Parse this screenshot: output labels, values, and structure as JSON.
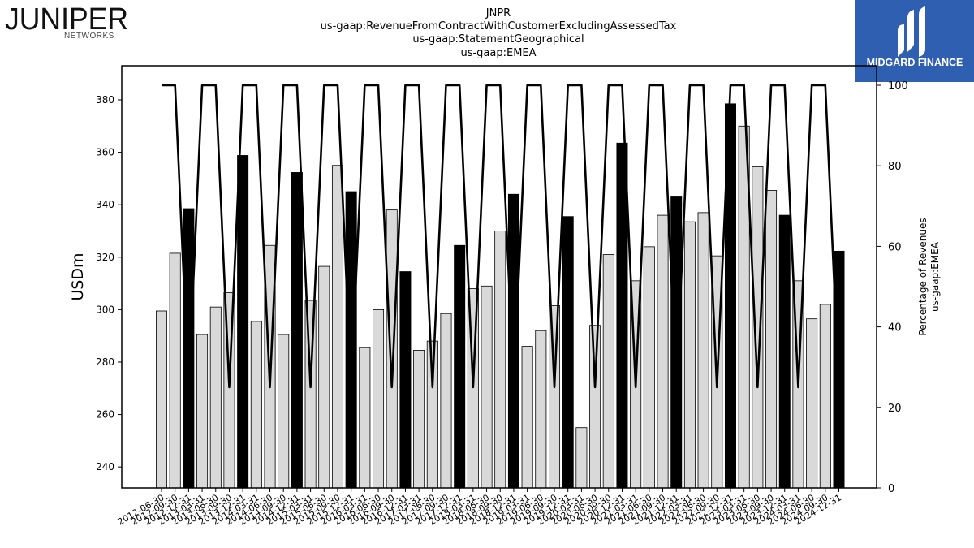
{
  "branding": {
    "left_logo": {
      "name": "JUNIPER",
      "sub": "NETWORKS"
    },
    "right_logo": {
      "name": "MIDGARD FINANCE",
      "color": "#2f5fb0"
    }
  },
  "chart_data": {
    "type": "bar",
    "title_lines": [
      "JNPR",
      "us-gaap:RevenueFromContractWithCustomerExcludingAssessedTax",
      "us-gaap:StatementGeographical",
      "us-gaap:EMEA"
    ],
    "ylabel": "USDm",
    "y2label_lines": [
      "Percentage of Revenues",
      "us-gaap:EMEA"
    ],
    "ylim": [
      232,
      393
    ],
    "yticks": [
      240,
      260,
      280,
      300,
      320,
      340,
      360,
      380
    ],
    "y2lim": [
      0,
      100
    ],
    "y2ticks": [
      0,
      20,
      40,
      60,
      80,
      100
    ],
    "colors": {
      "quarter": "#d9d9d9",
      "annual": "#000000",
      "line": "#000000"
    },
    "categories": [
      "2012-06-30",
      "2012-09-30",
      "2012-12-31",
      "2013-03-31",
      "2013-06-30",
      "2013-09-30",
      "2013-12-31",
      "2014-03-31",
      "2014-06-30",
      "2014-09-30",
      "2014-12-31",
      "2015-03-31",
      "2015-06-30",
      "2015-09-30",
      "2015-12-31",
      "2016-03-31",
      "2016-06-30",
      "2016-09-30",
      "2016-12-31",
      "2017-03-31",
      "2017-06-30",
      "2017-09-30",
      "2017-12-31",
      "2018-03-31",
      "2018-06-30",
      "2018-09-30",
      "2018-12-31",
      "2019-03-31",
      "2019-06-30",
      "2019-09-30",
      "2019-12-31",
      "2020-03-31",
      "2020-06-30",
      "2020-09-30",
      "2020-12-31",
      "2021-03-31",
      "2021-06-30",
      "2021-09-30",
      "2021-12-31",
      "2022-03-31",
      "2022-06-30",
      "2022-09-30",
      "2022-12-31",
      "2023-03-31",
      "2023-06-30",
      "2023-09-30",
      "2023-12-31",
      "2024-03-31",
      "2024-06-30",
      "2024-09-30",
      "2024-12-31"
    ],
    "values": [
      299.5,
      321.5,
      338.5,
      290.5,
      301,
      306.5,
      358.8,
      295.5,
      324.5,
      290.5,
      352.3,
      303.5,
      316.5,
      355,
      345,
      285.5,
      300,
      338,
      314.5,
      284.5,
      288,
      298.5,
      324.5,
      308,
      309,
      330,
      344,
      286,
      292,
      301.5,
      335.5,
      255,
      294,
      321,
      363.5,
      311,
      324,
      336,
      343,
      333.5,
      337,
      320.5,
      378.5,
      370,
      354.5,
      345.5,
      336,
      311,
      296.5,
      302,
      322.3
    ],
    "annual_flags": [
      0,
      0,
      1,
      0,
      0,
      0,
      1,
      0,
      0,
      0,
      1,
      0,
      0,
      0,
      1,
      0,
      0,
      0,
      1,
      0,
      0,
      0,
      1,
      0,
      0,
      0,
      1,
      0,
      0,
      0,
      1,
      0,
      0,
      0,
      1,
      0,
      0,
      0,
      1,
      0,
      0,
      0,
      1,
      0,
      0,
      0,
      1,
      0,
      0,
      0,
      1
    ],
    "pct_of_revenues": [
      100,
      100,
      25,
      100,
      100,
      25,
      100,
      100,
      25,
      100,
      100,
      25,
      100,
      100,
      25,
      100,
      100,
      25,
      100,
      100,
      25,
      100,
      100,
      25,
      100,
      100,
      25,
      100,
      100,
      25,
      100,
      100,
      25,
      100,
      100,
      25,
      100,
      100,
      25,
      100,
      100,
      25,
      100,
      100,
      25,
      100,
      100,
      25,
      100,
      100,
      25
    ]
  }
}
